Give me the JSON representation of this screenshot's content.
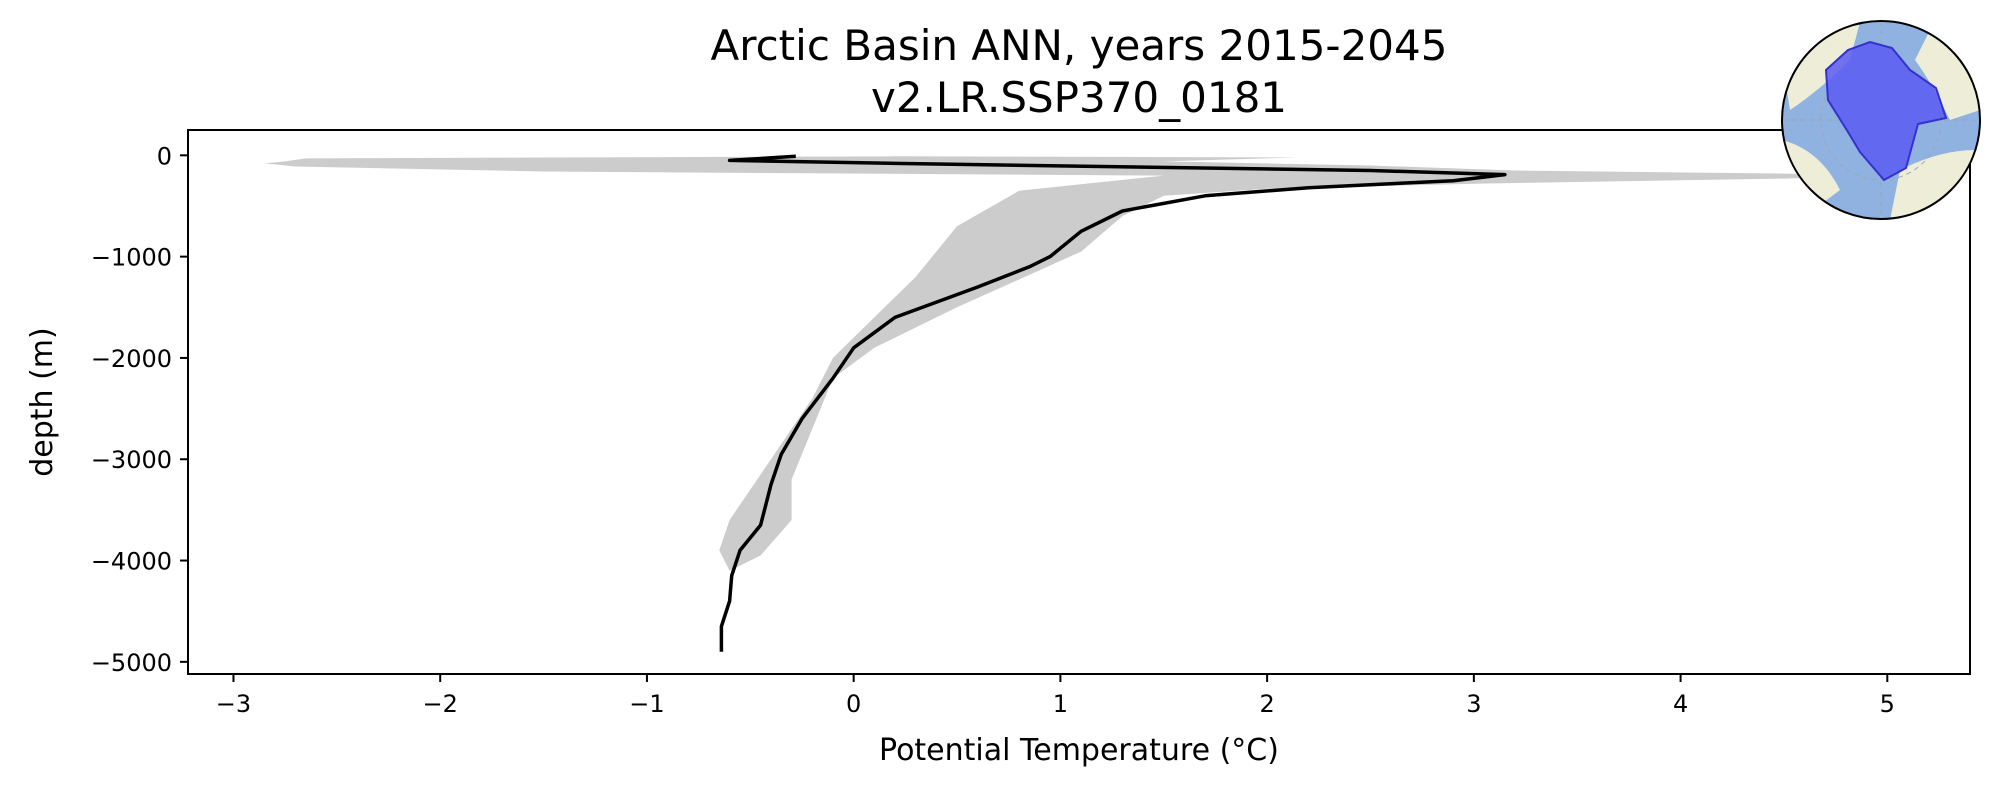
{
  "chart_data": {
    "type": "line",
    "title": "Arctic Basin ANN, years 2015-2045",
    "subtitle": "v2.LR.SSP370_0181",
    "xlabel": "Potential Temperature (°C)",
    "ylabel": "depth (m)",
    "xlim": [
      -3.22,
      5.4
    ],
    "ylim": [
      -5120,
      250
    ],
    "xticks": [
      -3,
      -2,
      -1,
      0,
      1,
      2,
      3,
      4,
      5
    ],
    "yticks": [
      0,
      -1000,
      -2000,
      -3000,
      -4000,
      -5000
    ],
    "xtick_labels": [
      "−3",
      "−2",
      "−1",
      "0",
      "1",
      "2",
      "3",
      "4",
      "5"
    ],
    "ytick_labels": [
      "0",
      "−1000",
      "−2000",
      "−3000",
      "−4000",
      "−5000"
    ],
    "grid": false,
    "series": [
      {
        "role": "mean",
        "color": "#000000",
        "x": [
          -0.28,
          -0.6,
          0.2,
          2.5,
          3.15,
          2.9,
          2.2,
          1.7,
          1.3,
          1.1,
          0.95,
          0.85,
          0.6,
          0.2,
          0.0,
          -0.1,
          -0.25,
          -0.35,
          -0.4,
          -0.45,
          -0.55,
          -0.59,
          -0.6,
          -0.64,
          -0.64
        ],
        "y": [
          -10,
          -50,
          -80,
          -150,
          -190,
          -250,
          -320,
          -400,
          -550,
          -750,
          -1000,
          -1100,
          -1300,
          -1600,
          -1900,
          -2200,
          -2600,
          -2950,
          -3250,
          -3650,
          -3900,
          -4150,
          -4400,
          -4650,
          -4900
        ]
      }
    ],
    "band": {
      "role": "range",
      "color": "#cccccc",
      "upper_x": [
        0.2,
        2.15,
        1.5,
        2.5,
        3.2,
        4.5,
        5.0,
        4.5,
        3.0,
        2.0,
        1.5,
        1.3,
        1.1,
        0.5,
        0.1,
        -0.1,
        -0.2,
        -0.3,
        -0.3,
        -0.45
      ],
      "upper_y": [
        -10,
        -20,
        -60,
        -100,
        -150,
        -180,
        -200,
        -230,
        -280,
        -330,
        -400,
        -600,
        -950,
        -1500,
        -1900,
        -2200,
        -2700,
        -3200,
        -3600,
        -3950
      ],
      "lower_x": [
        -2.65,
        -2.75,
        -2.85,
        -2.7,
        -1.5,
        1.5,
        0.8,
        0.5,
        0.3,
        0.1,
        -0.1,
        -0.2,
        -0.3,
        -0.4,
        -0.5,
        -0.6,
        -0.65,
        -0.6
      ],
      "lower_y": [
        -30,
        -60,
        -80,
        -110,
        -160,
        -200,
        -350,
        -700,
        -1200,
        -1600,
        -2000,
        -2400,
        -2700,
        -3000,
        -3300,
        -3600,
        -3900,
        -4100
      ]
    }
  },
  "inset_map": {
    "icon": "arctic-polar-map-icon",
    "ocean_color": "#8fb2e0",
    "land_color": "#eeeed8",
    "region_color": "#5a5af2"
  }
}
